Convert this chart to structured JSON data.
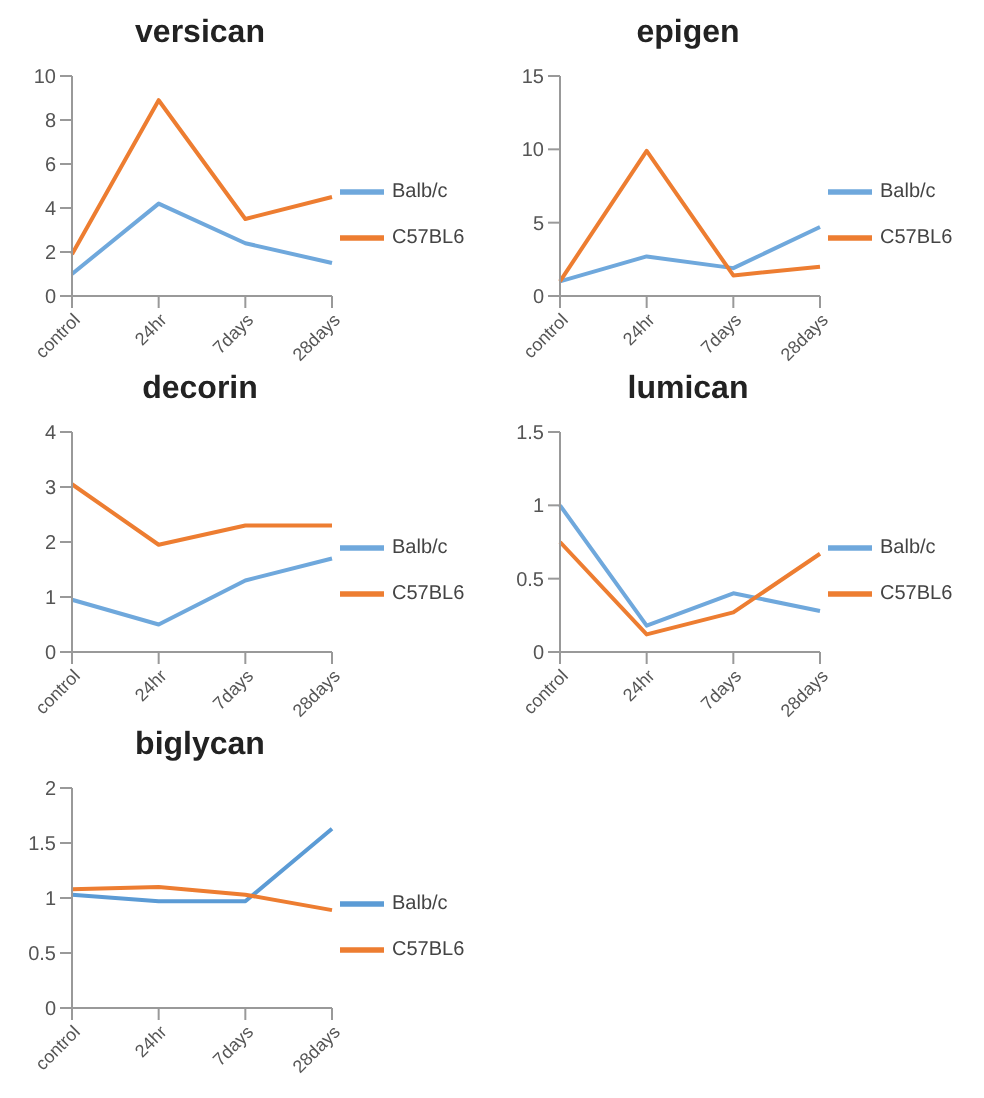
{
  "chart_data": [
    {
      "type": "line",
      "title": "versican",
      "categories": [
        "control",
        "24hr",
        "7days",
        "28days"
      ],
      "series": [
        {
          "name": "Balb/c",
          "color": "#6fa8dc",
          "values": [
            1,
            4.2,
            2.4,
            1.5
          ]
        },
        {
          "name": "C57BL6",
          "color": "#ed7d31",
          "values": [
            1.9,
            8.9,
            3.5,
            4.5
          ]
        }
      ],
      "ylim": [
        0,
        10
      ],
      "yticks": [
        0,
        2,
        4,
        6,
        8,
        10
      ],
      "grid": false,
      "legend": "right",
      "marker": "none"
    },
    {
      "type": "line",
      "title": "epigen",
      "categories": [
        "control",
        "24hr",
        "7days",
        "28days"
      ],
      "series": [
        {
          "name": "Balb/c",
          "color": "#6fa8dc",
          "values": [
            1,
            2.7,
            1.9,
            4.7
          ]
        },
        {
          "name": "C57BL6",
          "color": "#ed7d31",
          "values": [
            1,
            9.9,
            1.4,
            2
          ]
        }
      ],
      "ylim": [
        0,
        15
      ],
      "yticks": [
        0,
        5,
        10,
        15
      ],
      "grid": false,
      "legend": "right",
      "marker": "none"
    },
    {
      "type": "line",
      "title": "decorin",
      "categories": [
        "control",
        "24hr",
        "7days",
        "28days"
      ],
      "series": [
        {
          "name": "Balb/c",
          "color": "#6fa8dc",
          "values": [
            0.95,
            0.5,
            1.3,
            1.7
          ]
        },
        {
          "name": "C57BL6",
          "color": "#ed7d31",
          "values": [
            3.05,
            1.95,
            2.3,
            2.3
          ]
        }
      ],
      "ylim": [
        0,
        4
      ],
      "yticks": [
        0,
        1,
        2,
        3,
        4
      ],
      "grid": false,
      "legend": "right",
      "marker": "none"
    },
    {
      "type": "line",
      "title": "lumican",
      "categories": [
        "control",
        "24hr",
        "7days",
        "28days"
      ],
      "series": [
        {
          "name": "Balb/c",
          "color": "#6fa8dc",
          "values": [
            1,
            0.18,
            0.4,
            0.28
          ]
        },
        {
          "name": "C57BL6",
          "color": "#ed7d31",
          "values": [
            0.75,
            0.12,
            0.27,
            0.67
          ]
        }
      ],
      "ylim": [
        0,
        1.5
      ],
      "yticks": [
        0,
        0.5,
        1,
        1.5
      ],
      "grid": false,
      "legend": "right",
      "marker": "none"
    },
    {
      "type": "line",
      "title": "biglycan",
      "categories": [
        "control",
        "24hr",
        "7days",
        "28days"
      ],
      "series": [
        {
          "name": "Balb/c",
          "color": "#5b9bd5",
          "values": [
            1.03,
            0.97,
            0.97,
            1.63
          ]
        },
        {
          "name": "C57BL6",
          "color": "#ed7d31",
          "values": [
            1.08,
            1.1,
            1.03,
            0.89
          ]
        }
      ],
      "ylim": [
        0,
        2
      ],
      "yticks": [
        0,
        0.5,
        1,
        1.5,
        2
      ],
      "grid": false,
      "legend": "right",
      "marker": "none"
    }
  ]
}
